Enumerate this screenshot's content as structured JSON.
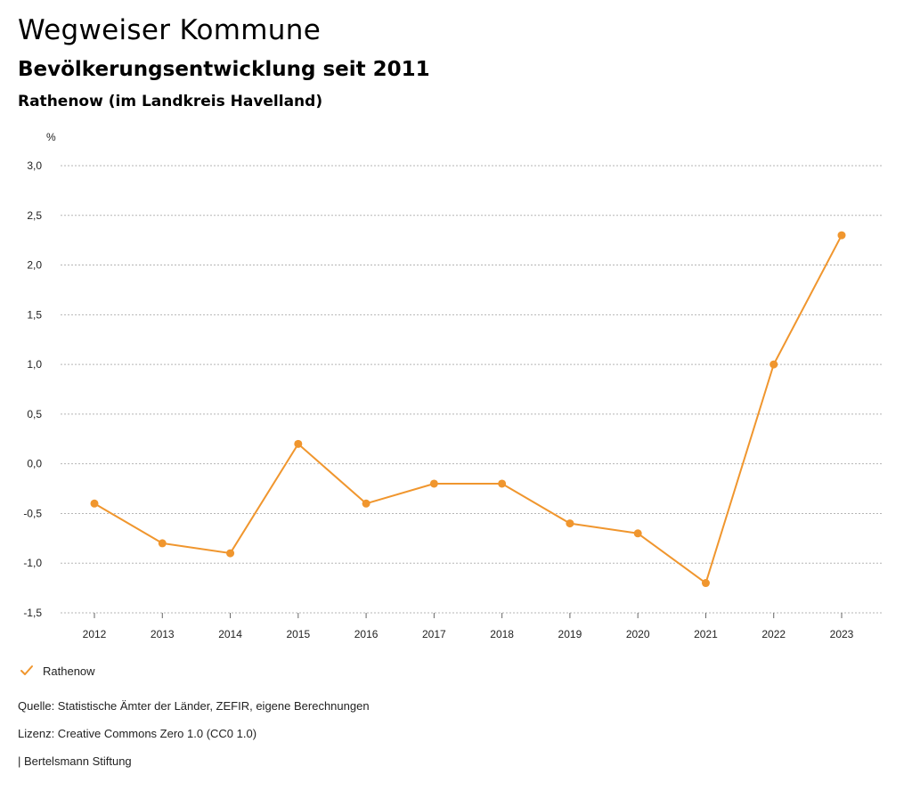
{
  "header": {
    "title": "Wegweiser Kommune",
    "subtitle": "Bevölkerungsentwicklung seit 2011",
    "place": "Rathenow (im Landkreis Havelland)"
  },
  "legend": {
    "label": "Rathenow",
    "icon": "check-icon"
  },
  "footer": {
    "source": "Quelle: Statistische Ämter der Länder, ZEFIR, eigene Berechnungen",
    "license": "Lizenz: Creative Commons Zero 1.0 (CC0 1.0)",
    "publisher": "| Bertelsmann Stiftung"
  },
  "colors": {
    "series": "#f0962e",
    "grid": "#b5b5b5"
  },
  "chart_data": {
    "type": "line",
    "title": "Bevölkerungsentwicklung seit 2011",
    "ylabel": "%",
    "xlabel": "",
    "ylim": [
      -1.5,
      3.0
    ],
    "yticks": [
      -1.5,
      -1.0,
      -0.5,
      0.0,
      0.5,
      1.0,
      1.5,
      2.0,
      2.5,
      3.0
    ],
    "ytick_labels": [
      "-1,5",
      "-1,0",
      "-0,5",
      "0,0",
      "0,5",
      "1,0",
      "1,5",
      "2,0",
      "2,5",
      "3,0"
    ],
    "categories": [
      "2012",
      "2013",
      "2014",
      "2015",
      "2016",
      "2017",
      "2018",
      "2019",
      "2020",
      "2021",
      "2022",
      "2023"
    ],
    "grid": true,
    "legend_position": "bottom-left",
    "series": [
      {
        "name": "Rathenow",
        "values": [
          -0.4,
          -0.8,
          -0.9,
          0.2,
          -0.4,
          -0.2,
          -0.2,
          -0.6,
          -0.7,
          -1.2,
          1.0,
          2.3
        ]
      }
    ]
  }
}
